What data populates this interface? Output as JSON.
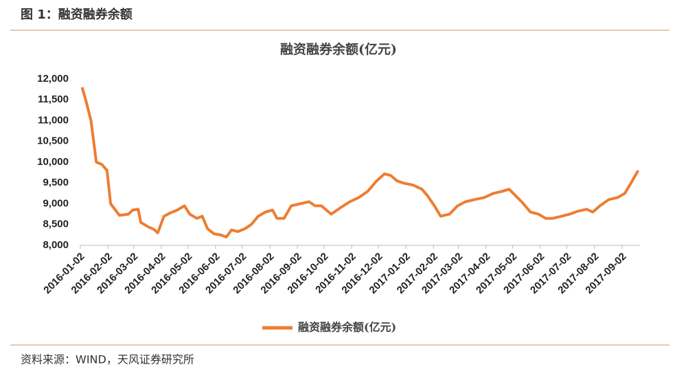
{
  "header": {
    "title": "图 1：融资融券余额"
  },
  "footer": {
    "source": "资料来源：WIND，天风证券研究所"
  },
  "chart_data": {
    "type": "line",
    "title": "融资融券余额(亿元)",
    "x": [
      "2016-01-04",
      "2016-01-08",
      "2016-01-14",
      "2016-01-20",
      "2016-01-26",
      "2016-02-01",
      "2016-02-05",
      "2016-02-15",
      "2016-02-25",
      "2016-03-01",
      "2016-03-07",
      "2016-03-10",
      "2016-03-18",
      "2016-03-25",
      "2016-03-29",
      "2016-04-05",
      "2016-04-12",
      "2016-04-20",
      "2016-04-28",
      "2016-05-04",
      "2016-05-12",
      "2016-05-18",
      "2016-05-24",
      "2016-05-31",
      "2016-06-08",
      "2016-06-14",
      "2016-06-20",
      "2016-06-27",
      "2016-07-05",
      "2016-07-12",
      "2016-07-20",
      "2016-07-28",
      "2016-08-05",
      "2016-08-10",
      "2016-08-18",
      "2016-08-26",
      "2016-09-05",
      "2016-09-15",
      "2016-09-22",
      "2016-09-29",
      "2016-10-10",
      "2016-10-20",
      "2016-10-31",
      "2016-11-10",
      "2016-11-20",
      "2016-11-30",
      "2016-12-09",
      "2016-12-16",
      "2016-12-23",
      "2016-12-30",
      "2017-01-10",
      "2017-01-20",
      "2017-01-26",
      "2017-02-03",
      "2017-02-10",
      "2017-02-20",
      "2017-03-01",
      "2017-03-10",
      "2017-03-20",
      "2017-03-31",
      "2017-04-10",
      "2017-04-20",
      "2017-04-28",
      "2017-05-05",
      "2017-05-12",
      "2017-05-22",
      "2017-05-31",
      "2017-06-08",
      "2017-06-16",
      "2017-06-26",
      "2017-07-05",
      "2017-07-14",
      "2017-07-24",
      "2017-07-31",
      "2017-08-08",
      "2017-08-18",
      "2017-08-28",
      "2017-09-05",
      "2017-09-12",
      "2017-09-20"
    ],
    "series": [
      {
        "name": "融资融券余额(亿元)",
        "color": "#ed7d31",
        "values": [
          11800,
          11500,
          11000,
          10000,
          9950,
          9800,
          9000,
          8720,
          8750,
          8850,
          8870,
          8550,
          8450,
          8380,
          8300,
          8700,
          8780,
          8850,
          8950,
          8750,
          8650,
          8700,
          8400,
          8280,
          8250,
          8200,
          8370,
          8330,
          8400,
          8500,
          8700,
          8800,
          8850,
          8650,
          8650,
          8950,
          9000,
          9050,
          8950,
          8950,
          8750,
          8900,
          9050,
          9150,
          9300,
          9550,
          9720,
          9680,
          9550,
          9500,
          9450,
          9350,
          9200,
          8950,
          8700,
          8750,
          8950,
          9050,
          9100,
          9150,
          9250,
          9300,
          9350,
          9200,
          9050,
          8800,
          8750,
          8650,
          8650,
          8700,
          8750,
          8820,
          8870,
          8800,
          8950,
          9100,
          9150,
          9250,
          9500,
          9800
        ]
      }
    ],
    "xlim": [
      "2016-01-02",
      "2017-09-22"
    ],
    "xticks": [
      "2016-01-02",
      "2016-02-02",
      "2016-03-02",
      "2016-04-02",
      "2016-05-02",
      "2016-06-02",
      "2016-07-02",
      "2016-08-02",
      "2016-09-02",
      "2016-10-02",
      "2016-11-02",
      "2016-12-02",
      "2017-01-02",
      "2017-02-02",
      "2017-03-02",
      "2017-04-02",
      "2017-05-02",
      "2017-06-02",
      "2017-07-02",
      "2017-08-02",
      "2017-09-02"
    ],
    "ylim": [
      8000,
      12000
    ],
    "yticks": [
      {
        "value": 8000,
        "label": "8,000"
      },
      {
        "value": 8500,
        "label": "8,500"
      },
      {
        "value": 9000,
        "label": "9,000"
      },
      {
        "value": 9500,
        "label": "9,500"
      },
      {
        "value": 10000,
        "label": "10,000"
      },
      {
        "value": 10500,
        "label": "10,500"
      },
      {
        "value": 11000,
        "label": "11,000"
      },
      {
        "value": 11500,
        "label": "11,500"
      },
      {
        "value": 12000,
        "label": "12,000"
      }
    ],
    "legend": "bottom"
  }
}
